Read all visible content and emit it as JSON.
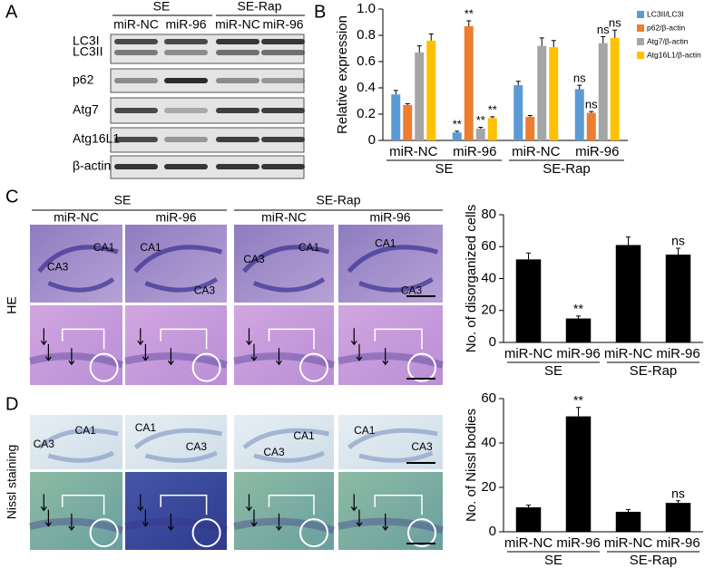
{
  "panel_labels": [
    "A",
    "B",
    "C",
    "D"
  ],
  "blot": {
    "groups": [
      "SE",
      "SE-Rap"
    ],
    "lanes": [
      "miR-NC",
      "miR-96",
      "miR-NC",
      "miR-96"
    ],
    "rows": [
      "LC3I",
      "LC3II",
      "p62",
      "Atg7",
      "Atg16L1",
      "β-actin"
    ]
  },
  "histology": {
    "groups": [
      "SE",
      "SE-Rap"
    ],
    "columns": [
      "miR-NC",
      "miR-96",
      "miR-NC",
      "miR-96"
    ],
    "rows": [
      "HE",
      "Nissl staining"
    ],
    "he_regions": [
      [
        "CA3",
        "CA1"
      ],
      [
        "CA1",
        "CA3"
      ],
      [
        "CA3",
        "CA1"
      ],
      [
        "CA1",
        "CA3"
      ]
    ],
    "nissl_regions": [
      [
        "CA1",
        "CA3"
      ],
      [
        "CA1",
        "CA3"
      ],
      [
        "CA1",
        "CA3"
      ],
      [
        "CA1",
        "CA3"
      ]
    ]
  },
  "chart_data": [
    {
      "type": "bar",
      "ylabel": "Relative expression",
      "categories": [
        "miR-NC",
        "miR-96",
        "miR-NC",
        "miR-96"
      ],
      "groups": [
        "SE",
        "SE-Rap"
      ],
      "ylim": [
        0,
        1
      ],
      "yticks": [
        0,
        0.2,
        0.4,
        0.6,
        0.8,
        {
          "value": 1,
          "label": "1.0"
        }
      ],
      "legend": "upper right",
      "series": [
        {
          "name": "LC3II/LC3I",
          "color": "#5b9bd5",
          "values": [
            0.35,
            0.06,
            0.42,
            0.39
          ],
          "errors": [
            0.03,
            0.01,
            0.03,
            0.03
          ],
          "annotations": [
            null,
            "**",
            null,
            "ns"
          ]
        },
        {
          "name": "p62/β-actin",
          "color": "#ed7d31",
          "values": [
            0.27,
            0.87,
            0.18,
            0.21
          ],
          "errors": [
            0.01,
            0.04,
            0.01,
            0.01
          ],
          "annotations": [
            null,
            "**",
            null,
            "ns"
          ]
        },
        {
          "name": "Atg7/β-actin",
          "color": "#a5a5a5",
          "values": [
            0.67,
            0.09,
            0.72,
            0.74
          ],
          "errors": [
            0.05,
            0.01,
            0.06,
            0.05
          ],
          "annotations": [
            null,
            "**",
            null,
            "ns"
          ]
        },
        {
          "name": "Atg16L1/β-actin",
          "color": "#ffc000",
          "values": [
            0.76,
            0.17,
            0.71,
            0.78
          ],
          "errors": [
            0.05,
            0.01,
            0.05,
            0.06
          ],
          "annotations": [
            null,
            "**",
            null,
            "ns"
          ]
        }
      ]
    },
    {
      "type": "bar",
      "ylabel": "No. of disorganized cells",
      "categories": [
        "miR-NC",
        "miR-96",
        "miR-NC",
        "miR-96"
      ],
      "groups": [
        "SE",
        "SE-Rap"
      ],
      "ylim": [
        0,
        80
      ],
      "yticks": [
        0,
        20,
        40,
        60,
        80
      ],
      "color": "#000000",
      "values": [
        52,
        15,
        61,
        55
      ],
      "errors": [
        4,
        1.5,
        5,
        4
      ],
      "annotations": [
        null,
        "**",
        null,
        "ns"
      ]
    },
    {
      "type": "bar",
      "ylabel": "No. of Nissl bodies",
      "categories": [
        "miR-NC",
        "miR-96",
        "miR-NC",
        "miR-96"
      ],
      "groups": [
        "SE",
        "SE-Rap"
      ],
      "ylim": [
        0,
        60
      ],
      "yticks": [
        0,
        20,
        40,
        60
      ],
      "color": "#000000",
      "values": [
        11,
        52,
        9,
        13
      ],
      "errors": [
        1,
        4,
        1,
        1
      ],
      "annotations": [
        null,
        "**",
        null,
        "ns"
      ]
    }
  ]
}
